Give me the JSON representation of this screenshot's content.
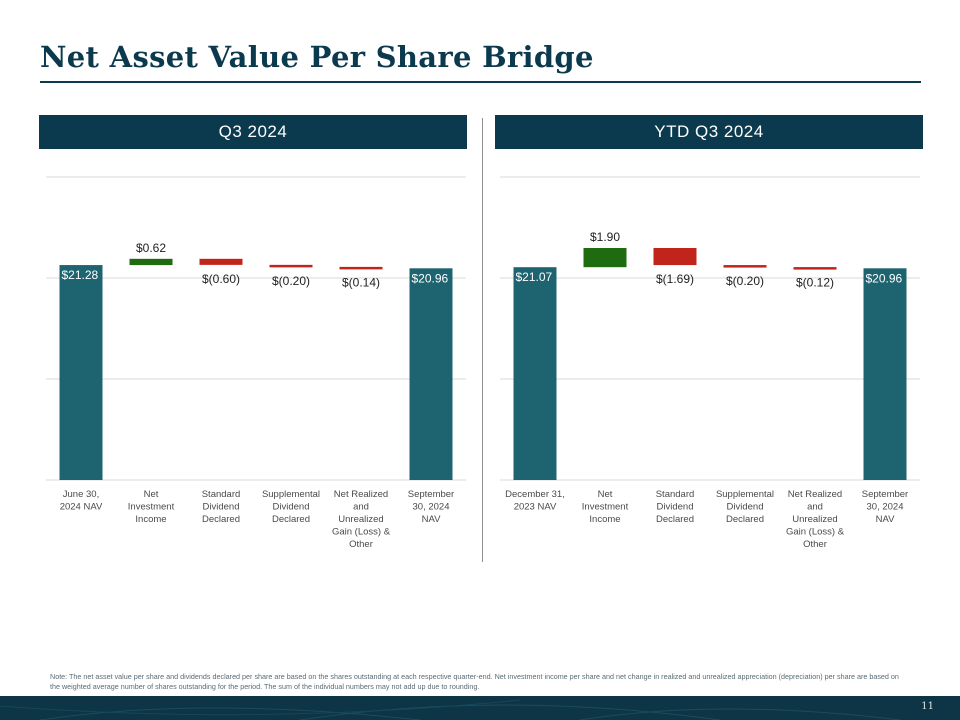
{
  "title": "Net Asset Value Per Share Bridge",
  "page_number": "11",
  "note": "Note: The net asset value per share and dividends declared per share are based on the shares outstanding at each respective quarter-end. Net investment income per share and net change in realized and unrealized appreciation (depreciation) per share are based on the weighted average number of shares outstanding for the period. The sum of the individual numbers may not add up due to rounding.",
  "colors": {
    "navy": "#0b3a4e",
    "total_bar": "#1e6470",
    "increase_bar": "#1f6b0f",
    "decrease_bar": "#c0241a",
    "grid": "#d9d9d9"
  },
  "chart_data": [
    {
      "type": "waterfall",
      "title": "Q3 2024",
      "categories": [
        "June 30, 2024 NAV",
        "Net Investment Income",
        "Standard Dividend Declared",
        "Supplemental Dividend Declared",
        "Net Realized and Unrealized Gain (Loss) & Other",
        "September 30, 2024 NAV"
      ],
      "category_lines": [
        [
          "June 30,",
          "2024 NAV"
        ],
        [
          "Net",
          "Investment",
          "Income"
        ],
        [
          "Standard",
          "Dividend",
          "Declared"
        ],
        [
          "Supplemental",
          "Dividend",
          "Declared"
        ],
        [
          "Net Realized",
          "and",
          "Unrealized",
          "Gain (Loss) &",
          "Other"
        ],
        [
          "September",
          "30, 2024",
          "NAV"
        ]
      ],
      "values": [
        21.28,
        0.62,
        -0.6,
        -0.2,
        -0.14,
        20.96
      ],
      "kinds": [
        "total",
        "increase",
        "decrease",
        "decrease",
        "decrease",
        "total"
      ],
      "labels": [
        "$21.28",
        "$0.62",
        "$(0.60)",
        "$(0.20)",
        "$(0.14)",
        "$20.96"
      ],
      "ylim": [
        0,
        30
      ]
    },
    {
      "type": "waterfall",
      "title": "YTD Q3 2024",
      "categories": [
        "December 31, 2023 NAV",
        "Net Investment Income",
        "Standard Dividend Declared",
        "Supplemental Dividend Declared",
        "Net Realized and Unrealized Gain (Loss) & Other",
        "September 30, 2024 NAV"
      ],
      "category_lines": [
        [
          "December 31,",
          "2023 NAV"
        ],
        [
          "Net",
          "Investment",
          "Income"
        ],
        [
          "Standard",
          "Dividend",
          "Declared"
        ],
        [
          "Supplemental",
          "Dividend",
          "Declared"
        ],
        [
          "Net Realized",
          "and",
          "Unrealized",
          "Gain (Loss) &",
          "Other"
        ],
        [
          "September",
          "30, 2024",
          "NAV"
        ]
      ],
      "values": [
        21.07,
        1.9,
        -1.69,
        -0.2,
        -0.12,
        20.96
      ],
      "kinds": [
        "total",
        "increase",
        "decrease",
        "decrease",
        "decrease",
        "total"
      ],
      "labels": [
        "$21.07",
        "$1.90",
        "$(1.69)",
        "$(0.20)",
        "$(0.12)",
        "$20.96"
      ],
      "ylim": [
        0,
        30
      ]
    }
  ]
}
